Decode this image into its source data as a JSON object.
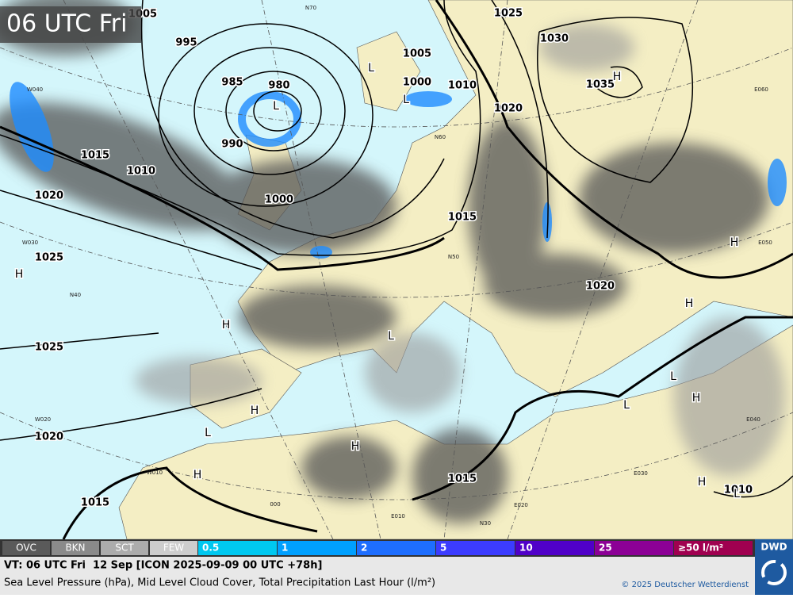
{
  "header": {
    "title": "06 UTC Fri"
  },
  "isobar_labels": [
    "1005",
    "995",
    "985",
    "980",
    "990",
    "1015",
    "1010",
    "1000",
    "1020",
    "1025",
    "1025",
    "1020",
    "1015",
    "1005",
    "1000",
    "1010",
    "1025",
    "1030",
    "1035",
    "1020",
    "1015",
    "1020",
    "1015",
    "1010"
  ],
  "pressure_centers": [
    "L",
    "L",
    "L",
    "L",
    "L",
    "L",
    "L",
    "L",
    "H",
    "H",
    "H",
    "H",
    "H",
    "H",
    "H",
    "H",
    "H",
    "H"
  ],
  "grid_labels": [
    "W040",
    "N60",
    "N50",
    "W030",
    "N40",
    "W020",
    "W010",
    "000",
    "E010",
    "E020",
    "E030",
    "E040",
    "E050",
    "E060",
    "N30",
    "N70"
  ],
  "legend": {
    "cloud": [
      "OVC",
      "BKN",
      "SCT",
      "FEW"
    ],
    "precip": [
      "0.5",
      "1",
      "2",
      "5",
      "10",
      "25",
      "≥50 l/m²"
    ]
  },
  "footer": {
    "valid_time": "VT: 06 UTC Fri  12 Sep [ICON 2025-09-09 00 UTC +78h]",
    "description": "Sea Level Pressure (hPa), Mid Level Cloud Cover, Total Precipitation Last Hour (l/m²)",
    "copyright": "© 2025 Deutscher Wetterdienst",
    "logo": "DWD"
  }
}
